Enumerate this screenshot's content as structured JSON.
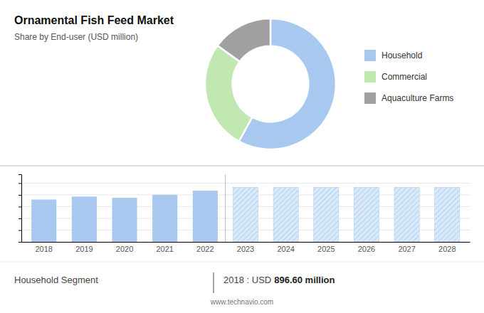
{
  "chart_data": [
    {
      "type": "pie",
      "title": "Ornamental Fish Feed Market",
      "subtitle": "Share by End-user (USD million)",
      "categories": [
        "Household",
        "Commercial",
        "Aquaculture Farms"
      ],
      "values": [
        58,
        27,
        15
      ],
      "colors": [
        "#a8c8f0",
        "#c0e8b0",
        "#a0a0a0"
      ],
      "legend": "right"
    },
    {
      "type": "bar",
      "categories": [
        "2018",
        "2019",
        "2020",
        "2021",
        "2022",
        "2023",
        "2024",
        "2025",
        "2026",
        "2027",
        "2028"
      ],
      "values": [
        0.72,
        0.77,
        0.75,
        0.8,
        0.87,
        0.93,
        0.93,
        0.93,
        0.93,
        0.93,
        0.93
      ],
      "colors": [
        "#a8c8f0",
        "#a8c8f0",
        "#a8c8f0",
        "#a8c8f0",
        "#a8c8f0",
        "#d8eaf8",
        "#d8eaf8",
        "#d8eaf8",
        "#d8eaf8",
        "#d8eaf8",
        "#d8eaf8"
      ],
      "ylim": [
        0,
        1.15
      ],
      "yticks": [
        0.2,
        0.4,
        0.6,
        0.8,
        1.0
      ],
      "grid": true,
      "tick_labels": "x",
      "annotations": [
        "Household Segment",
        "2018 : USD ",
        "896.60 million",
        "www.technavio.com"
      ]
    }
  ]
}
